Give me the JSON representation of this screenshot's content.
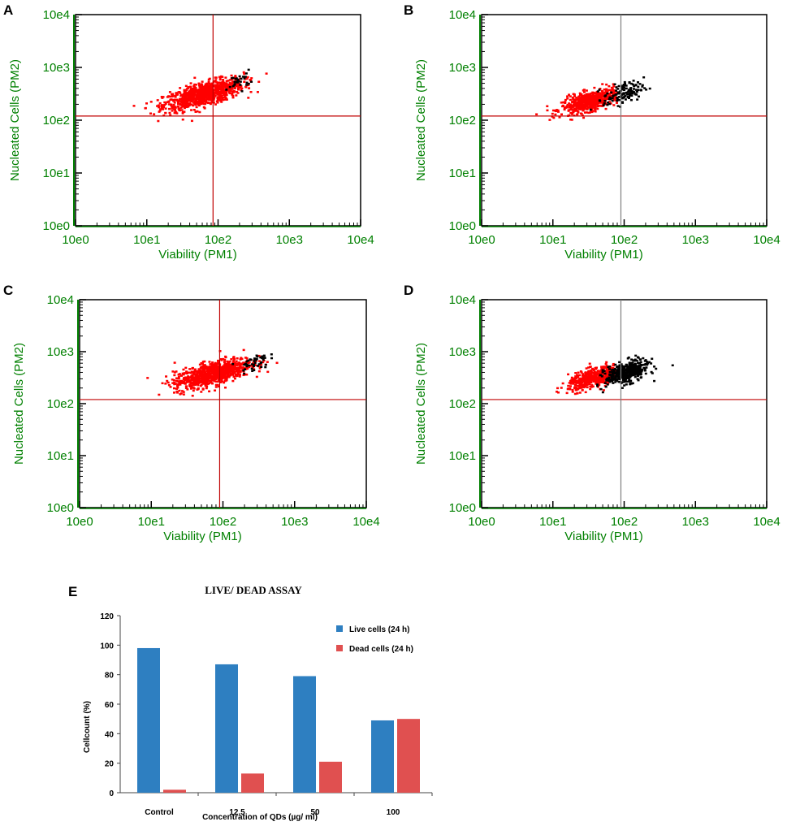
{
  "chart_data": [
    {
      "type": "scatter",
      "panel_label": "A",
      "xlabel": "Viability (PM1)",
      "ylabel": "Nucleated Cells (PM2)",
      "x_scale": "log",
      "y_scale": "log",
      "xlim": [
        1,
        10000
      ],
      "ylim": [
        1,
        10000
      ],
      "x_ticks": [
        "10e0",
        "10e1",
        "10e2",
        "10e3",
        "10e4"
      ],
      "y_ticks": [
        "10e0",
        "10e1",
        "10e2",
        "10e3",
        "10e4"
      ],
      "gate_x": 85,
      "gate_y": 120,
      "gate_color": "#c00000",
      "series": [
        {
          "name": "live",
          "color": "#ff0000",
          "count": 900,
          "center": [
            60,
            320
          ],
          "spread": [
            0.28,
            0.11
          ]
        },
        {
          "name": "dead",
          "color": "#000000",
          "count": 30,
          "center": [
            190,
            580
          ],
          "spread": [
            0.08,
            0.08
          ]
        }
      ]
    },
    {
      "type": "scatter",
      "panel_label": "B",
      "xlabel": "Viability (PM1)",
      "ylabel": "Nucleated Cells (PM2)",
      "x_scale": "log",
      "y_scale": "log",
      "xlim": [
        1,
        10000
      ],
      "ylim": [
        1,
        10000
      ],
      "x_ticks": [
        "10e0",
        "10e1",
        "10e2",
        "10e3",
        "10e4"
      ],
      "y_ticks": [
        "10e0",
        "10e1",
        "10e2",
        "10e3",
        "10e4"
      ],
      "gate_x": 90,
      "gate_y": 120,
      "gate_color": "#808080",
      "series": [
        {
          "name": "live",
          "color": "#ff0000",
          "count": 600,
          "center": [
            32,
            240
          ],
          "spread": [
            0.2,
            0.09
          ]
        },
        {
          "name": "dead",
          "color": "#000000",
          "count": 130,
          "center": [
            95,
            340
          ],
          "spread": [
            0.14,
            0.1
          ]
        }
      ]
    },
    {
      "type": "scatter",
      "panel_label": "C",
      "xlabel": "Viability (PM1)",
      "ylabel": "Nucleated Cells (PM2)",
      "x_scale": "log",
      "y_scale": "log",
      "xlim": [
        1,
        10000
      ],
      "ylim": [
        1,
        10000
      ],
      "x_ticks": [
        "10e0",
        "10e1",
        "10e2",
        "10e3",
        "10e4"
      ],
      "y_ticks": [
        "10e0",
        "10e1",
        "10e2",
        "10e3",
        "10e4"
      ],
      "gate_x": 90,
      "gate_y": 120,
      "gate_color": "#c00000",
      "series": [
        {
          "name": "live",
          "color": "#ff0000",
          "count": 900,
          "center": [
            70,
            400
          ],
          "spread": [
            0.27,
            0.11
          ]
        },
        {
          "name": "dead",
          "color": "#000000",
          "count": 45,
          "center": [
            260,
            650
          ],
          "spread": [
            0.1,
            0.08
          ]
        }
      ]
    },
    {
      "type": "scatter",
      "panel_label": "D",
      "xlabel": "Viability (PM1)",
      "ylabel": "Nucleated Cells (PM2)",
      "x_scale": "log",
      "y_scale": "log",
      "xlim": [
        1,
        10000
      ],
      "ylim": [
        1,
        10000
      ],
      "x_ticks": [
        "10e0",
        "10e1",
        "10e2",
        "10e3",
        "10e4"
      ],
      "y_ticks": [
        "10e0",
        "10e1",
        "10e2",
        "10e3",
        "10e4"
      ],
      "gate_x": 90,
      "gate_y": 120,
      "gate_color": "#808080",
      "series": [
        {
          "name": "live",
          "color": "#ff0000",
          "count": 500,
          "center": [
            38,
            330
          ],
          "spread": [
            0.19,
            0.09
          ]
        },
        {
          "name": "dead",
          "color": "#000000",
          "count": 420,
          "center": [
            105,
            420
          ],
          "spread": [
            0.15,
            0.1
          ]
        }
      ]
    },
    {
      "type": "bar",
      "panel_label": "E",
      "title": "LIVE/ DEAD ASSAY",
      "xlabel": "Concentration of QDs (µg/ ml)",
      "ylabel": "Cellcount (%)",
      "ylim": [
        0,
        120
      ],
      "y_ticks": [
        "0",
        "20",
        "40",
        "60",
        "80",
        "100",
        "120"
      ],
      "categories": [
        "Control",
        "12.5",
        "50",
        "100"
      ],
      "series": [
        {
          "name": "Live cells (24 h)",
          "color": "#2e7fc1",
          "values": [
            98,
            87,
            79,
            49
          ]
        },
        {
          "name": "Dead cells (24 h)",
          "color": "#e05050",
          "values": [
            2,
            13,
            21,
            50
          ]
        }
      ]
    }
  ]
}
